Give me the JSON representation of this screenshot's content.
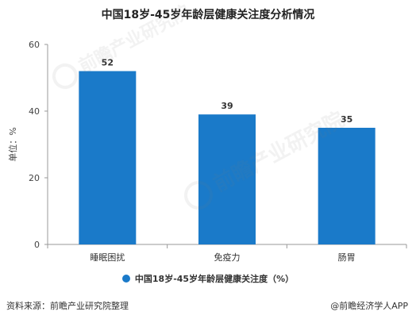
{
  "chart_data": {
    "type": "bar",
    "title": "中国18岁-45岁年龄层健康关注度分析情况",
    "categories": [
      "睡眠困扰",
      "免疫力",
      "肠胃"
    ],
    "series": [
      {
        "name": "中国18岁-45岁年龄层健康关注度（%）",
        "values": [
          52,
          39,
          35
        ]
      }
    ],
    "ylabel": "单位：%",
    "ylim": [
      0,
      60
    ],
    "yticks": [
      0,
      20,
      40,
      60
    ],
    "grid": false,
    "legend_position": "bottom",
    "data_labels": true,
    "bar_color": "#1a7ac9"
  },
  "footer": {
    "source": "资料来源：前瞻产业研究院整理",
    "brand": "@前瞻经济学人APP"
  },
  "watermark": {
    "text": "前瞻产业研究院"
  }
}
